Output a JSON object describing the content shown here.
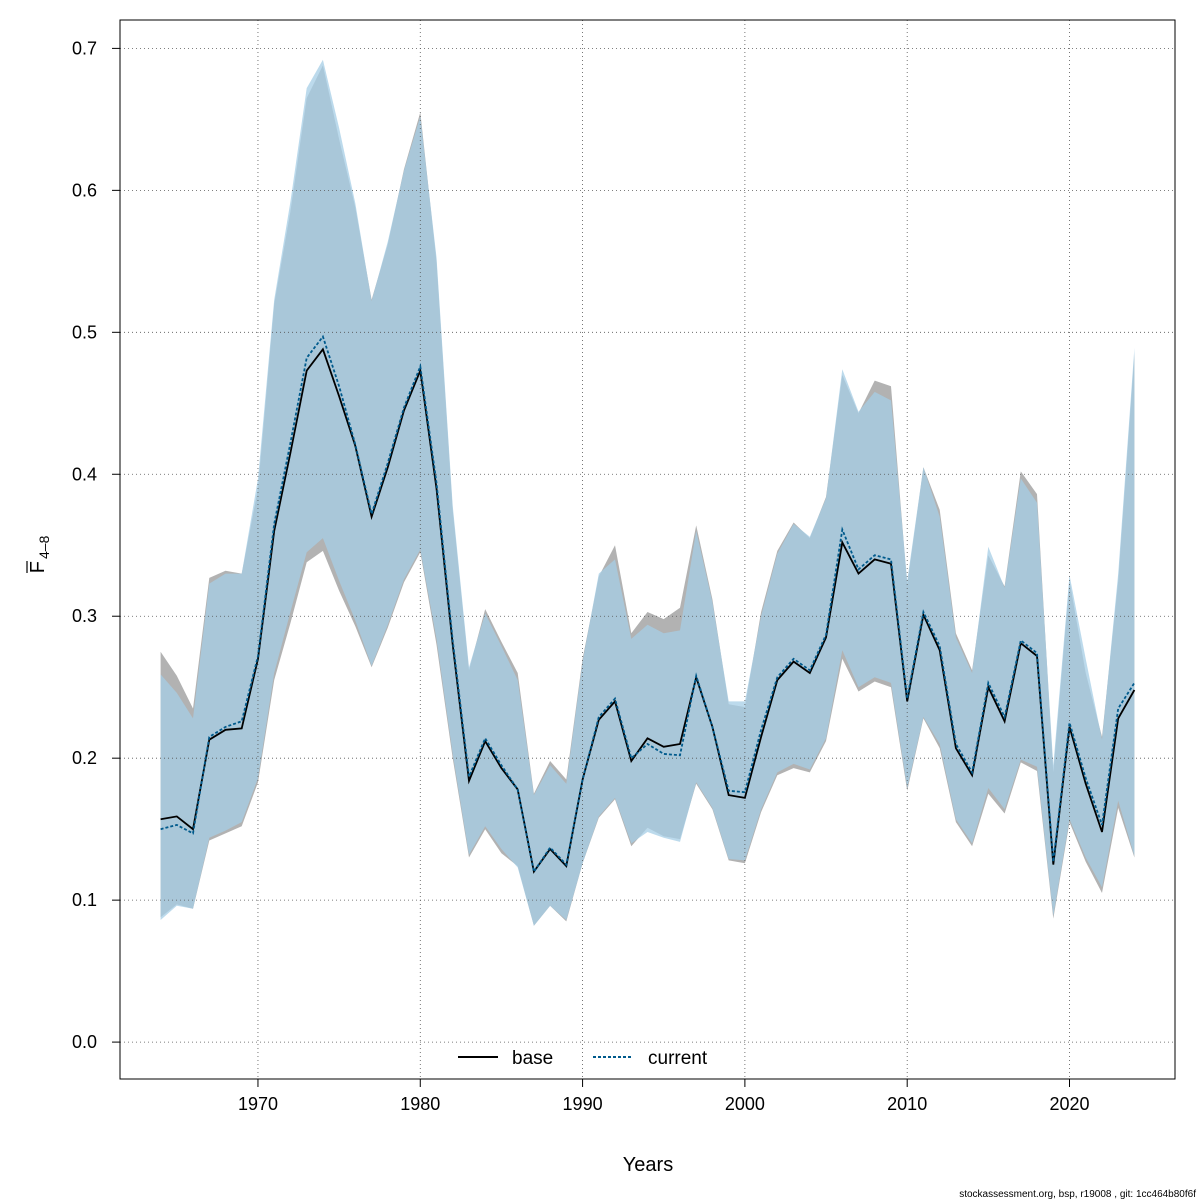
{
  "chart_data": {
    "type": "line",
    "xlabel": "Years",
    "ylabel": "F",
    "ylabel_sub": "4–8",
    "xlim": [
      1961.5,
      2026.5
    ],
    "ylim": [
      -0.026,
      0.72
    ],
    "xticks": [
      1970,
      1980,
      1990,
      2000,
      2010,
      2020
    ],
    "xtick_labels": [
      "1970",
      "1980",
      "1990",
      "2000",
      "2010",
      "2020"
    ],
    "yticks": [
      0.0,
      0.1,
      0.2,
      0.3,
      0.4,
      0.5,
      0.6,
      0.7
    ],
    "ytick_labels": [
      "0.0",
      "0.1",
      "0.2",
      "0.3",
      "0.4",
      "0.5",
      "0.6",
      "0.7"
    ],
    "grid": true,
    "legend_position": "bottom-center",
    "x": [
      1964,
      1965,
      1966,
      1967,
      1968,
      1969,
      1970,
      1971,
      1972,
      1973,
      1974,
      1975,
      1976,
      1977,
      1978,
      1979,
      1980,
      1981,
      1982,
      1983,
      1984,
      1985,
      1986,
      1987,
      1988,
      1989,
      1990,
      1991,
      1992,
      1993,
      1994,
      1995,
      1996,
      1997,
      1998,
      1999,
      2000,
      2001,
      2002,
      2003,
      2004,
      2005,
      2006,
      2007,
      2008,
      2009,
      2010,
      2011,
      2012,
      2013,
      2014,
      2015,
      2016,
      2017,
      2018,
      2019,
      2020,
      2021,
      2022,
      2023,
      2024
    ],
    "series": [
      {
        "name": "base",
        "color": "#000000",
        "band_color": "#aaaaaa",
        "values": [
          0.157,
          0.159,
          0.15,
          0.213,
          0.22,
          0.221,
          0.27,
          0.36,
          0.415,
          0.473,
          0.488,
          0.455,
          0.42,
          0.37,
          0.405,
          0.445,
          0.473,
          0.39,
          0.28,
          0.184,
          0.212,
          0.193,
          0.178,
          0.12,
          0.136,
          0.124,
          0.185,
          0.227,
          0.24,
          0.198,
          0.214,
          0.208,
          0.21,
          0.257,
          0.222,
          0.174,
          0.172,
          0.215,
          0.255,
          0.268,
          0.26,
          0.285,
          0.352,
          0.33,
          0.34,
          0.337,
          0.24,
          0.301,
          0.276,
          0.207,
          0.188,
          0.25,
          0.226,
          0.281,
          0.272,
          0.125,
          0.222,
          0.182,
          0.148,
          0.228,
          0.248
        ],
        "lower": [
          0.088,
          0.097,
          0.094,
          0.142,
          0.147,
          0.152,
          0.183,
          0.255,
          0.295,
          0.338,
          0.346,
          0.318,
          0.293,
          0.264,
          0.292,
          0.324,
          0.345,
          0.28,
          0.2,
          0.13,
          0.15,
          0.133,
          0.124,
          0.082,
          0.096,
          0.085,
          0.126,
          0.158,
          0.171,
          0.138,
          0.151,
          0.145,
          0.143,
          0.182,
          0.164,
          0.128,
          0.126,
          0.162,
          0.188,
          0.193,
          0.19,
          0.212,
          0.27,
          0.247,
          0.254,
          0.25,
          0.177,
          0.228,
          0.207,
          0.155,
          0.138,
          0.175,
          0.161,
          0.197,
          0.191,
          0.087,
          0.155,
          0.127,
          0.105,
          0.165,
          0.13
        ],
        "upper": [
          0.275,
          0.258,
          0.235,
          0.327,
          0.332,
          0.33,
          0.39,
          0.52,
          0.585,
          0.665,
          0.688,
          0.636,
          0.588,
          0.523,
          0.562,
          0.615,
          0.655,
          0.55,
          0.375,
          0.262,
          0.305,
          0.282,
          0.26,
          0.175,
          0.198,
          0.185,
          0.27,
          0.328,
          0.35,
          0.288,
          0.303,
          0.298,
          0.306,
          0.364,
          0.312,
          0.238,
          0.236,
          0.303,
          0.346,
          0.366,
          0.355,
          0.384,
          0.47,
          0.443,
          0.466,
          0.462,
          0.322,
          0.405,
          0.375,
          0.288,
          0.262,
          0.343,
          0.321,
          0.402,
          0.386,
          0.19,
          0.325,
          0.26,
          0.215,
          0.325,
          0.485
        ]
      },
      {
        "name": "current",
        "color": "#005a8c",
        "band_color": "#a6cde6",
        "values": [
          0.15,
          0.153,
          0.147,
          0.215,
          0.222,
          0.226,
          0.272,
          0.365,
          0.422,
          0.482,
          0.497,
          0.462,
          0.421,
          0.372,
          0.408,
          0.447,
          0.476,
          0.394,
          0.283,
          0.187,
          0.214,
          0.195,
          0.178,
          0.12,
          0.137,
          0.125,
          0.185,
          0.229,
          0.242,
          0.2,
          0.21,
          0.203,
          0.202,
          0.258,
          0.222,
          0.177,
          0.176,
          0.22,
          0.257,
          0.27,
          0.262,
          0.287,
          0.361,
          0.333,
          0.343,
          0.34,
          0.242,
          0.303,
          0.279,
          0.21,
          0.19,
          0.253,
          0.229,
          0.283,
          0.274,
          0.127,
          0.225,
          0.186,
          0.153,
          0.235,
          0.253
        ],
        "lower": [
          0.086,
          0.096,
          0.094,
          0.144,
          0.149,
          0.155,
          0.186,
          0.26,
          0.303,
          0.345,
          0.355,
          0.325,
          0.297,
          0.265,
          0.294,
          0.326,
          0.347,
          0.284,
          0.203,
          0.132,
          0.152,
          0.136,
          0.123,
          0.082,
          0.096,
          0.086,
          0.126,
          0.159,
          0.172,
          0.14,
          0.148,
          0.144,
          0.141,
          0.183,
          0.165,
          0.129,
          0.128,
          0.164,
          0.19,
          0.196,
          0.192,
          0.214,
          0.276,
          0.25,
          0.257,
          0.253,
          0.179,
          0.229,
          0.21,
          0.157,
          0.14,
          0.179,
          0.164,
          0.199,
          0.194,
          0.089,
          0.157,
          0.13,
          0.109,
          0.17,
          0.131
        ],
        "upper": [
          0.259,
          0.246,
          0.228,
          0.323,
          0.33,
          0.33,
          0.397,
          0.523,
          0.592,
          0.672,
          0.692,
          0.644,
          0.591,
          0.522,
          0.564,
          0.614,
          0.652,
          0.553,
          0.378,
          0.264,
          0.302,
          0.279,
          0.255,
          0.174,
          0.195,
          0.182,
          0.268,
          0.33,
          0.34,
          0.284,
          0.294,
          0.288,
          0.29,
          0.36,
          0.31,
          0.24,
          0.24,
          0.3,
          0.344,
          0.365,
          0.356,
          0.383,
          0.474,
          0.444,
          0.458,
          0.452,
          0.325,
          0.405,
          0.37,
          0.285,
          0.26,
          0.349,
          0.32,
          0.397,
          0.38,
          0.195,
          0.329,
          0.27,
          0.213,
          0.33,
          0.489
        ]
      }
    ]
  },
  "footer": "stockassessment.org, bsp, r19008 , git: 1cc464b80f6f"
}
